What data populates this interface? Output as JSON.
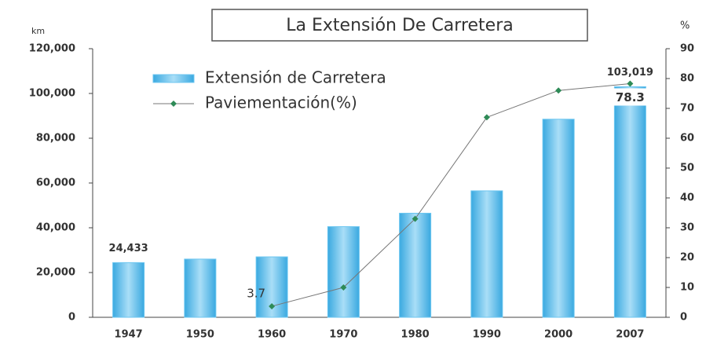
{
  "chart_data": {
    "type": "bar",
    "title": "La Extensión De Carretera",
    "y_label": "km",
    "y2_label": "%",
    "categories": [
      "1947",
      "1950",
      "1960",
      "1970",
      "1980",
      "1990",
      "2000",
      "2007"
    ],
    "series": [
      {
        "name": "Extensión de Carretera",
        "type": "bar",
        "color": "#6cc6f0",
        "values": [
          24433,
          26000,
          27000,
          40500,
          46500,
          56500,
          88500,
          103019
        ],
        "value_labels": [
          "24,433",
          null,
          null,
          null,
          null,
          null,
          null,
          "103,019"
        ]
      },
      {
        "name": "Paviementación(%)",
        "type": "line",
        "axis": "y2",
        "color": "#2e8b57",
        "values": [
          null,
          null,
          3.7,
          10,
          33,
          67,
          76,
          78.3
        ],
        "value_labels": [
          null,
          null,
          "3.7",
          null,
          null,
          null,
          null,
          "78.3"
        ]
      }
    ],
    "ylim": [
      0,
      120000
    ],
    "yticks": [
      0,
      {
        "value": 20000,
        "label": "20,000"
      },
      {
        "value": 40000,
        "label": "40,000"
      },
      {
        "value": 60000,
        "label": "60,000"
      },
      {
        "value": 80000,
        "label": "80,000"
      },
      {
        "value": 100000,
        "label": "100,000"
      },
      {
        "value": 120000,
        "label": "120,000"
      }
    ],
    "y2lim": [
      0,
      90
    ],
    "y2ticks": [
      0,
      10,
      20,
      30,
      40,
      50,
      60,
      70,
      80,
      90
    ],
    "legend": "upper left"
  }
}
